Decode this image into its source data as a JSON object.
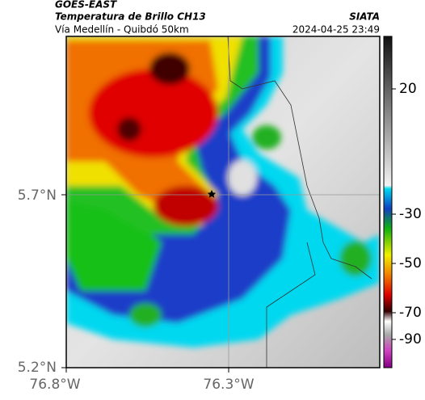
{
  "header": {
    "satellite": "GOES-EAST",
    "product": "Temperatura de Brillo CH13",
    "source": "SIATA",
    "region": "Vía Medellín - Quibdó 50km",
    "timestamp": "2024-04-25 23:49"
  },
  "map": {
    "lat_labels": [
      "5.7°N",
      "5.2°N"
    ],
    "lon_labels": [
      "76.8°W",
      "76.3°W"
    ]
  },
  "colorbar": {
    "ticks": [
      20,
      -30,
      -50,
      -70,
      -90
    ]
  }
}
